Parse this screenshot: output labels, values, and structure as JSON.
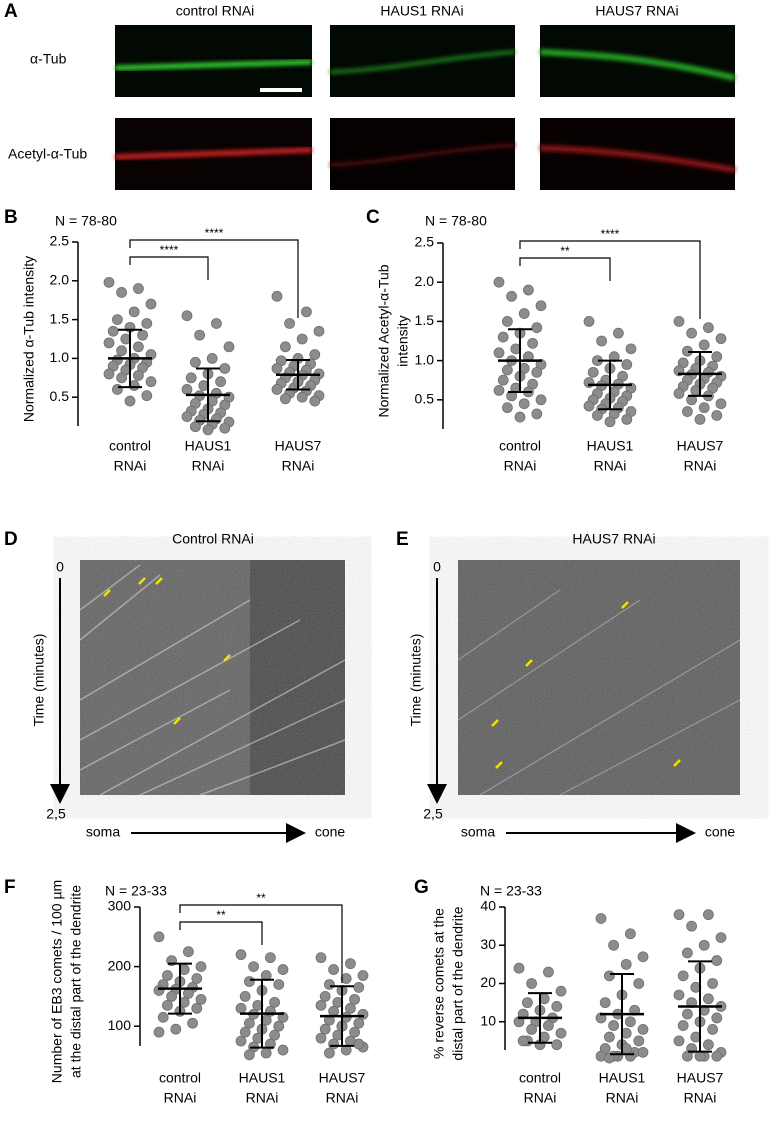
{
  "panel_A": {
    "letter": "A",
    "columns": [
      "control RNAi",
      "HAUS1 RNAi",
      "HAUS7 RNAi"
    ],
    "rows": [
      "α-Tub",
      "Acetyl-α-Tub"
    ]
  },
  "chart_data": [
    {
      "type": "dotplot",
      "letter": "B",
      "annotation": "N = 78-80",
      "ylabel": [
        "Normalized α-Tub intensity"
      ],
      "categories": [
        [
          "control",
          "RNAi"
        ],
        [
          "HAUS1",
          "RNAi"
        ],
        [
          "HAUS7",
          "RNAi"
        ]
      ],
      "color": "#8c8c8c",
      "ylim": [
        0,
        2.5
      ],
      "yticks": [
        0.5,
        {
          "value": 1,
          "label": "1.0"
        },
        1.5,
        {
          "value": 2,
          "label": "2.0"
        },
        2.5
      ],
      "groups": [
        {
          "mean": 1.0,
          "sd": 0.37,
          "values": [
            1.98,
            1.9,
            1.85,
            1.7,
            1.6,
            1.5,
            1.45,
            1.4,
            1.35,
            1.3,
            1.25,
            1.2,
            1.15,
            1.1,
            1.05,
            1.0,
            0.98,
            0.95,
            0.92,
            0.9,
            0.88,
            0.85,
            0.8,
            0.78,
            0.75,
            0.7,
            0.65,
            0.6,
            0.52,
            0.45
          ]
        },
        {
          "mean": 0.53,
          "sd": 0.34,
          "values": [
            1.55,
            1.45,
            1.3,
            1.15,
            1.0,
            0.95,
            0.87,
            0.8,
            0.75,
            0.7,
            0.65,
            0.6,
            0.55,
            0.52,
            0.5,
            0.45,
            0.42,
            0.4,
            0.35,
            0.32,
            0.3,
            0.28,
            0.25,
            0.22,
            0.2,
            0.18,
            0.15,
            0.12,
            0.1,
            0.08
          ]
        },
        {
          "mean": 0.79,
          "sd": 0.19,
          "values": [
            1.8,
            1.6,
            1.45,
            1.35,
            1.25,
            1.15,
            1.05,
            1.0,
            0.97,
            0.93,
            0.9,
            0.87,
            0.85,
            0.82,
            0.8,
            0.78,
            0.75,
            0.72,
            0.7,
            0.68,
            0.65,
            0.62,
            0.6,
            0.58,
            0.55,
            0.52,
            0.5,
            0.48,
            0.45,
            0.7
          ]
        }
      ],
      "significance": [
        {
          "from": 0,
          "to": 1,
          "label": "****"
        },
        {
          "from": 0,
          "to": 2,
          "label": "****"
        }
      ]
    },
    {
      "type": "dotplot",
      "letter": "C",
      "annotation": "N = 78-80",
      "ylabel": [
        "Normalized Acetyl-α-Tub",
        "intensity"
      ],
      "categories": [
        [
          "control",
          "RNAi"
        ],
        [
          "HAUS1",
          "RNAi"
        ],
        [
          "HAUS7",
          "RNAi"
        ]
      ],
      "color": "#8c8c8c",
      "ylim": [
        0,
        2.5
      ],
      "yticks": [
        0.5,
        {
          "value": 1,
          "label": "1.0"
        },
        1.5,
        {
          "value": 2,
          "label": "2.0"
        },
        2.5
      ],
      "groups": [
        {
          "mean": 1.0,
          "sd": 0.4,
          "values": [
            2.0,
            1.9,
            1.82,
            1.7,
            1.6,
            1.5,
            1.42,
            1.35,
            1.3,
            1.22,
            1.15,
            1.1,
            1.05,
            1.0,
            0.95,
            0.9,
            0.88,
            0.85,
            0.8,
            0.75,
            0.7,
            0.65,
            0.62,
            0.6,
            0.55,
            0.5,
            0.45,
            0.4,
            0.32,
            0.28
          ]
        },
        {
          "mean": 0.69,
          "sd": 0.31,
          "values": [
            1.5,
            1.35,
            1.25,
            1.15,
            1.05,
            1.0,
            0.95,
            0.9,
            0.85,
            0.8,
            0.75,
            0.72,
            0.7,
            0.68,
            0.65,
            0.6,
            0.58,
            0.55,
            0.52,
            0.5,
            0.48,
            0.45,
            0.42,
            0.4,
            0.38,
            0.35,
            0.32,
            0.3,
            0.25,
            0.22
          ]
        },
        {
          "mean": 0.83,
          "sd": 0.28,
          "values": [
            1.5,
            1.42,
            1.35,
            1.28,
            1.2,
            1.12,
            1.05,
            1.0,
            0.97,
            0.93,
            0.9,
            0.87,
            0.85,
            0.82,
            0.8,
            0.77,
            0.75,
            0.72,
            0.7,
            0.67,
            0.65,
            0.62,
            0.58,
            0.55,
            0.5,
            0.45,
            0.4,
            0.35,
            0.3,
            0.25
          ]
        }
      ],
      "significance": [
        {
          "from": 0,
          "to": 1,
          "label": "**"
        },
        {
          "from": 0,
          "to": 2,
          "label": "****"
        }
      ]
    },
    {
      "type": "dotplot",
      "letter": "F",
      "annotation": "N = 23-33",
      "ylabel": [
        "Number of EB3 comets / 100 µm",
        "at the distal part of the dendrite"
      ],
      "categories": [
        [
          "control",
          "RNAi"
        ],
        [
          "HAUS1",
          "RNAi"
        ],
        [
          "HAUS7",
          "RNAi"
        ]
      ],
      "color": "#8c8c8c",
      "ylim": [
        50,
        300
      ],
      "yticks": [
        100,
        200,
        300
      ],
      "groups": [
        {
          "mean": 163,
          "sd": 42,
          "values": [
            250,
            225,
            210,
            200,
            195,
            185,
            180,
            175,
            170,
            165,
            162,
            160,
            155,
            150,
            145,
            140,
            135,
            130,
            125,
            115,
            105,
            95,
            90
          ]
        },
        {
          "mean": 121,
          "sd": 57,
          "values": [
            220,
            215,
            200,
            195,
            185,
            175,
            170,
            160,
            150,
            140,
            135,
            130,
            125,
            120,
            115,
            110,
            105,
            100,
            95,
            90,
            85,
            80,
            75,
            70,
            65,
            60,
            55,
            52
          ]
        },
        {
          "mean": 117,
          "sd": 50,
          "values": [
            215,
            205,
            195,
            185,
            180,
            170,
            165,
            160,
            150,
            145,
            140,
            135,
            130,
            125,
            120,
            115,
            110,
            105,
            100,
            95,
            90,
            85,
            80,
            75,
            70,
            65,
            60,
            55,
            70,
            100
          ]
        }
      ],
      "significance": [
        {
          "from": 0,
          "to": 1,
          "label": "**"
        },
        {
          "from": 0,
          "to": 2,
          "label": "**"
        }
      ]
    },
    {
      "type": "dotplot",
      "letter": "G",
      "annotation": "N = 23-33",
      "ylabel": [
        "% reverse comets at the",
        "distal part of the dendrite"
      ],
      "categories": [
        [
          "control",
          "RNAi"
        ],
        [
          "HAUS1",
          "RNAi"
        ],
        [
          "HAUS7",
          "RNAi"
        ]
      ],
      "color": "#8c8c8c",
      "ylim": [
        0,
        40
      ],
      "yticks": [
        10,
        20,
        30,
        40
      ],
      "groups": [
        {
          "mean": 11,
          "sd": 6.5,
          "values": [
            24,
            23,
            20,
            18,
            16,
            15,
            14,
            13,
            12,
            11,
            10,
            10,
            9,
            8,
            7,
            6,
            5,
            4,
            4,
            5
          ]
        },
        {
          "mean": 12,
          "sd": 10.5,
          "values": [
            37,
            33,
            30,
            27,
            25,
            22,
            20,
            17,
            15,
            13,
            12,
            11,
            10,
            9,
            8,
            7,
            6,
            5,
            4,
            3,
            2,
            1,
            1,
            1,
            1,
            2,
            3,
            0.5
          ]
        },
        {
          "mean": 14,
          "sd": 11.8,
          "values": [
            38,
            38,
            35,
            32,
            30,
            28,
            26,
            24,
            22,
            20,
            19,
            17,
            16,
            15,
            14,
            13,
            12,
            11,
            10,
            9,
            8,
            6,
            5,
            4,
            3,
            2,
            1,
            1,
            1,
            1
          ]
        }
      ],
      "significance": []
    }
  ],
  "panel_D": {
    "letter": "D",
    "title": "Control RNAi",
    "y_label": "Time (minutes)",
    "y_start": "0",
    "y_end": "2,5",
    "x_start": "soma",
    "x_end": "cone"
  },
  "panel_E": {
    "letter": "E",
    "title": "HAUS7 RNAi",
    "y_label": "Time (minutes)",
    "y_start": "0",
    "y_end": "2,5",
    "x_start": "soma",
    "x_end": "cone"
  }
}
